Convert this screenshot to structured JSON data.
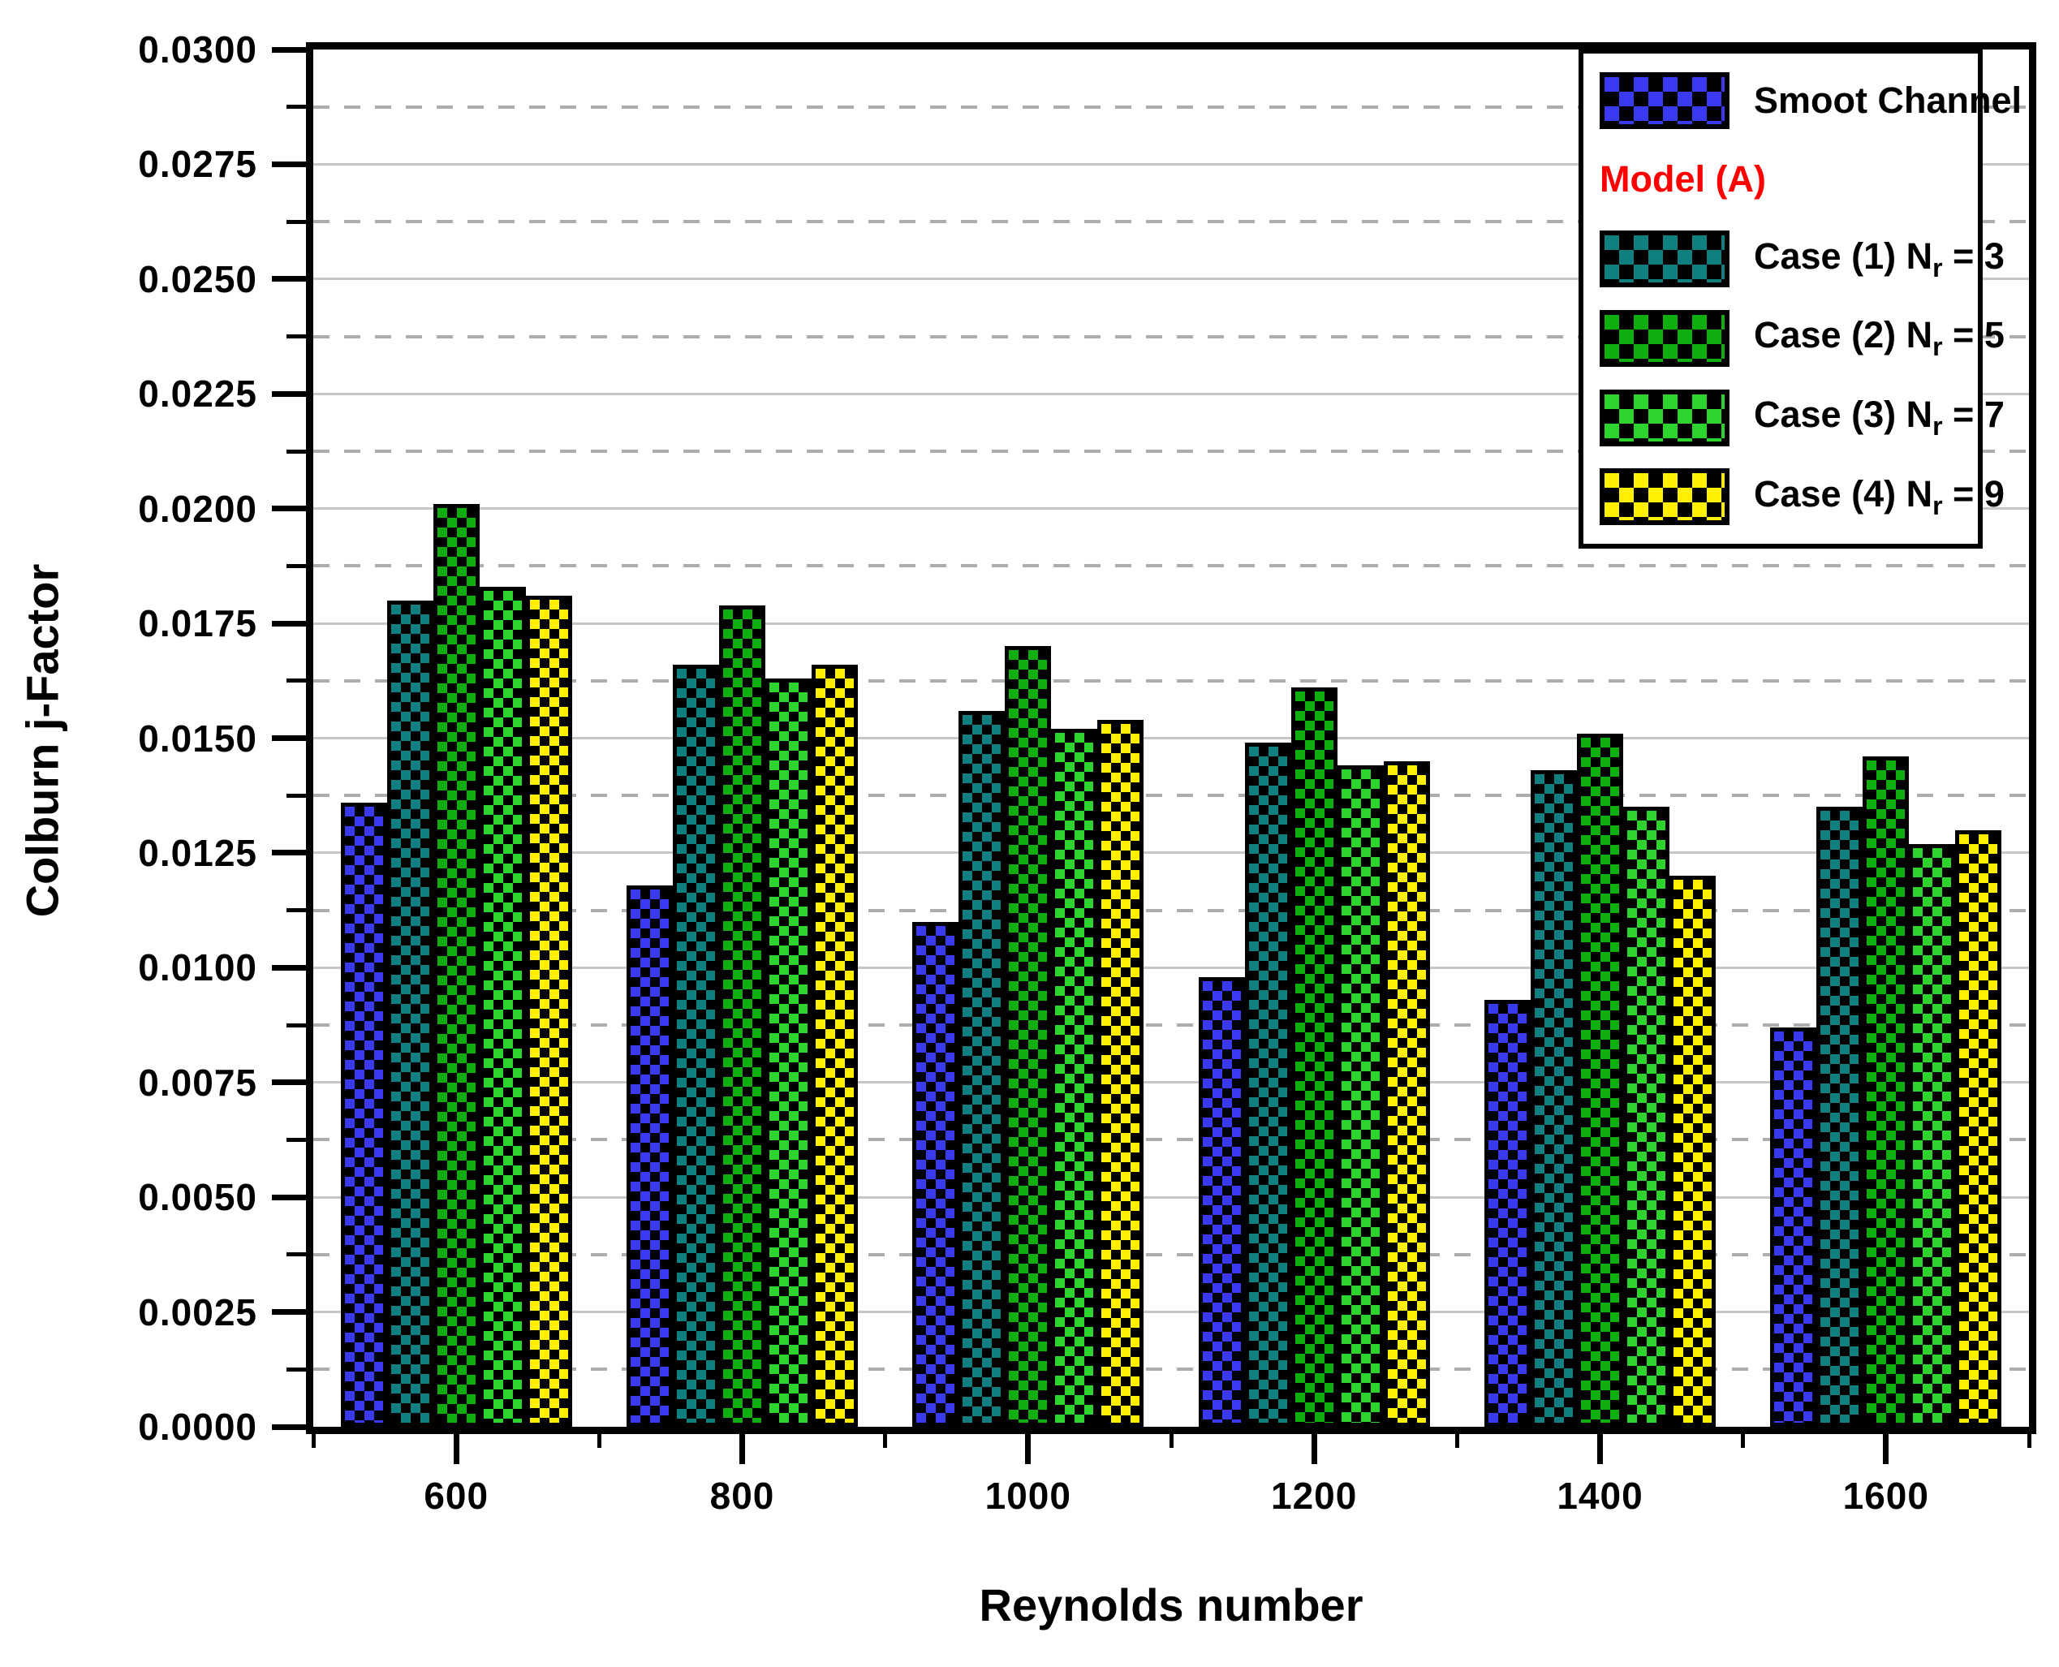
{
  "page": {
    "background": "#ffffff",
    "frame_color": "#000000",
    "grid_major_color": "#c6c6c6",
    "grid_minor_color": "#adadad"
  },
  "chart_data": {
    "type": "bar",
    "title": "",
    "xlabel": "Reynolds number",
    "ylabel": "Colburn j-Factor",
    "categories": [
      600,
      800,
      1000,
      1200,
      1400,
      1600
    ],
    "x_tick_labels": [
      "600",
      "800",
      "1000",
      "1200",
      "1400",
      "1600"
    ],
    "y_tick_labels": [
      "0.0000",
      "0.0025",
      "0.0050",
      "0.0075",
      "0.0100",
      "0.0125",
      "0.0150",
      "0.0175",
      "0.0200",
      "0.0225",
      "0.0250",
      "0.0275",
      "0.0300"
    ],
    "ylim": [
      0,
      0.03
    ],
    "y_major_step": 0.0025,
    "y_minor_step": 0.00125,
    "grid": "horizontal: solid at major ticks, dashed at minor ticks",
    "legend_position": "top-right",
    "series": [
      {
        "name": "Smoot Channel",
        "color": "#3a3af2",
        "values": [
          0.0136,
          0.0118,
          0.011,
          0.0098,
          0.0093,
          0.0087
        ]
      },
      {
        "name": "Case (1) Nr = 3",
        "color": "#107f7f",
        "values": [
          0.018,
          0.0166,
          0.0156,
          0.0149,
          0.0143,
          0.0135
        ]
      },
      {
        "name": "Case (2) Nr = 5",
        "color": "#0fae0f",
        "values": [
          0.0201,
          0.0179,
          0.017,
          0.0161,
          0.0151,
          0.0146
        ]
      },
      {
        "name": "Case (3) Nr = 7",
        "color": "#2ed32e",
        "values": [
          0.0183,
          0.0163,
          0.0152,
          0.0144,
          0.0135,
          0.0127
        ]
      },
      {
        "name": "Case (4) Nr = 9",
        "color": "#ffef00",
        "values": [
          0.0181,
          0.0166,
          0.0154,
          0.0145,
          0.012,
          0.013
        ]
      }
    ]
  },
  "axes": {
    "y_title": "Colburn j-Factor",
    "x_title": "Reynolds number"
  },
  "legend": {
    "items": [
      {
        "kind": "swatch",
        "series": 0,
        "color": "#3a3af2",
        "prefix": "Smoot Channel",
        "sub": "",
        "suffix": ""
      },
      {
        "kind": "header",
        "color": "#ff0000",
        "prefix": "Model (A)",
        "sub": "",
        "suffix": ""
      },
      {
        "kind": "swatch",
        "series": 1,
        "color": "#107f7f",
        "prefix": "Case (1) N",
        "sub": "r",
        "suffix": " = 3"
      },
      {
        "kind": "swatch",
        "series": 2,
        "color": "#0fae0f",
        "prefix": "Case (2) N",
        "sub": "r",
        "suffix": " = 5"
      },
      {
        "kind": "swatch",
        "series": 3,
        "color": "#2ed32e",
        "prefix": "Case (3) N",
        "sub": "r",
        "suffix": " = 7"
      },
      {
        "kind": "swatch",
        "series": 4,
        "color": "#ffef00",
        "prefix": "Case (4) N",
        "sub": "r",
        "suffix": " = 9"
      }
    ]
  }
}
